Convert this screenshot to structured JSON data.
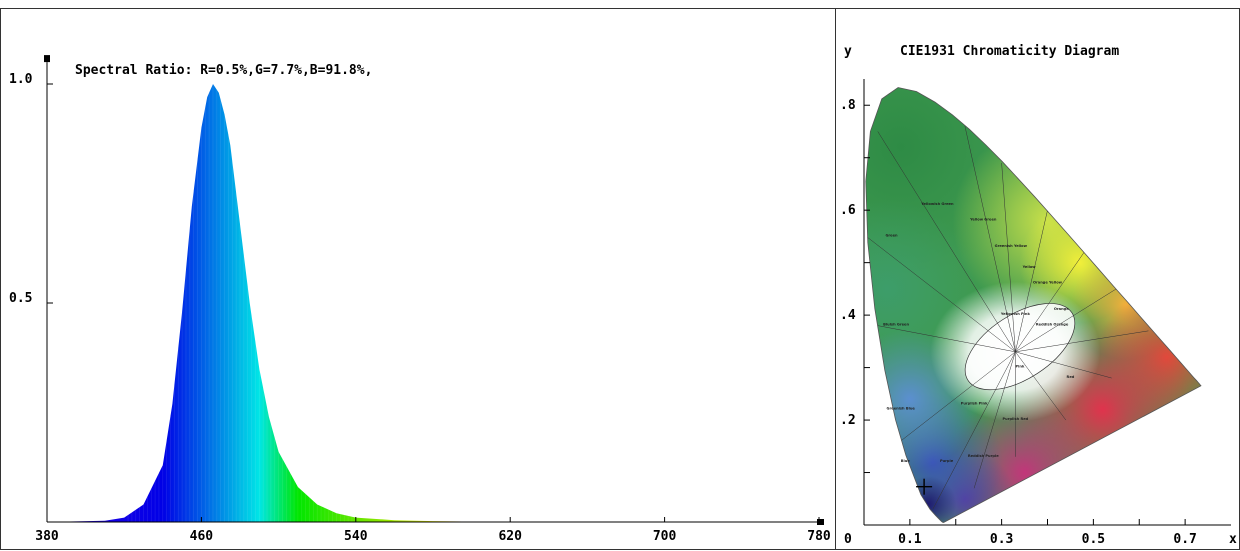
{
  "spectrum": {
    "chart_data": {
      "type": "area",
      "title": "Spectral Ratio:  R=0.5%,G=7.7%,B=91.8%,",
      "xlabel": "",
      "ylabel": "",
      "xlim": [
        380,
        780
      ],
      "ylim": [
        0,
        1.0
      ],
      "x_ticks": [
        "380",
        "460",
        "540",
        "620",
        "700",
        "780"
      ],
      "y_ticks": [
        "1.0",
        "0.5"
      ],
      "peak_wavelength": 466,
      "peak_value": 1.0,
      "series": [
        {
          "x": [
            380,
            410,
            420,
            430,
            440,
            445,
            450,
            455,
            460,
            463,
            466,
            469,
            472,
            475,
            480,
            485,
            490,
            495,
            500,
            510,
            520,
            530,
            540,
            560,
            580,
            600,
            650,
            700,
            780
          ],
          "values": [
            0,
            0.003,
            0.01,
            0.04,
            0.13,
            0.27,
            0.48,
            0.72,
            0.9,
            0.97,
            1.0,
            0.98,
            0.93,
            0.86,
            0.68,
            0.5,
            0.35,
            0.24,
            0.16,
            0.08,
            0.04,
            0.02,
            0.01,
            0.004,
            0.002,
            0.001,
            0.0005,
            0.0003,
            0.0
          ]
        }
      ]
    }
  },
  "cie": {
    "chart_data": {
      "type": "scatter",
      "title": "CIE1931 Chromaticity Diagram",
      "xlabel": "x",
      "ylabel": "y",
      "xlim": [
        0,
        0.8
      ],
      "ylim": [
        0,
        0.85
      ],
      "x_ticks": [
        "0",
        "0.1",
        "0.3",
        "0.5",
        "0.7"
      ],
      "y_ticks": [
        ".8",
        ".6",
        ".4",
        ".2"
      ],
      "measured_point": {
        "x": 0.131,
        "y": 0.073
      },
      "regions": [
        "Green",
        "Yellowish Green",
        "Yellow Green",
        "Greenish Yellow",
        "Yellow",
        "Orange Yellow",
        "Orange",
        "Bluish Green",
        "Yellowish Pink",
        "Reddish Orange",
        "Pink",
        "Red",
        "Greenish Blue",
        "Purplish Pink",
        "Purplish Red",
        "Blue",
        "Purple",
        "Reddish Purple"
      ]
    }
  }
}
